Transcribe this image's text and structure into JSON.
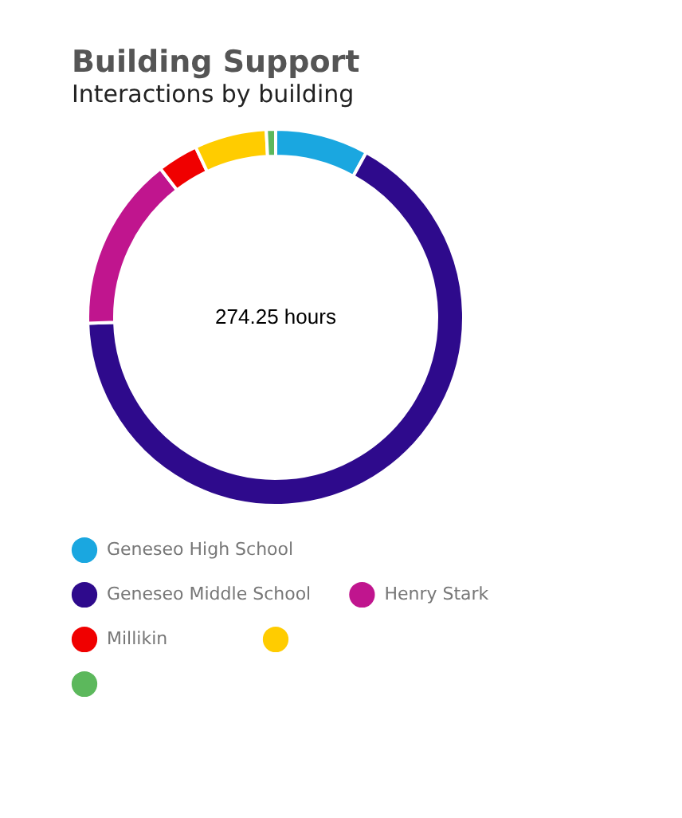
{
  "chart_data": {
    "type": "donut",
    "title": "Building Support",
    "subtitle": "Interactions by building",
    "categories": [
      "Geneseo High School",
      "Geneseo Middle School",
      "Henry Stark",
      "Millikin",
      null,
      null
    ],
    "values": [
      8,
      66.5,
      15,
      3.5,
      6.2,
      0.8
    ],
    "colors": [
      "#1aa7e0",
      "#2e0a8c",
      "#c0158e",
      "#f00000",
      "#ffcc00",
      "#5cb85c"
    ],
    "legend": "bottom",
    "annotations": [
      "274.25 hours"
    ]
  }
}
